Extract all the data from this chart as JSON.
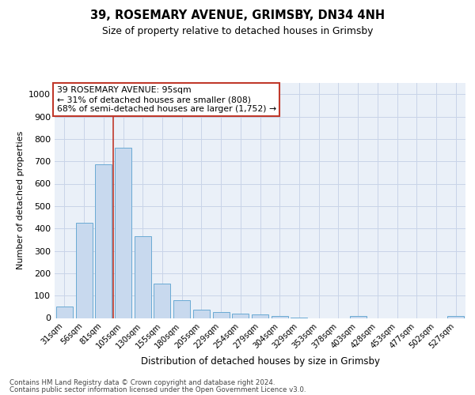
{
  "title1": "39, ROSEMARY AVENUE, GRIMSBY, DN34 4NH",
  "title2": "Size of property relative to detached houses in Grimsby",
  "xlabel": "Distribution of detached houses by size in Grimsby",
  "ylabel": "Number of detached properties",
  "categories": [
    "31sqm",
    "56sqm",
    "81sqm",
    "105sqm",
    "130sqm",
    "155sqm",
    "180sqm",
    "205sqm",
    "229sqm",
    "254sqm",
    "279sqm",
    "304sqm",
    "329sqm",
    "353sqm",
    "378sqm",
    "403sqm",
    "428sqm",
    "453sqm",
    "477sqm",
    "502sqm",
    "527sqm"
  ],
  "values": [
    50,
    425,
    685,
    760,
    365,
    153,
    78,
    38,
    27,
    20,
    15,
    8,
    2,
    0,
    0,
    10,
    0,
    0,
    0,
    0,
    10
  ],
  "bar_color": "#c8d9ee",
  "bar_edge_color": "#6aaad4",
  "grid_color": "#c8d4e8",
  "background_color": "#eaf0f8",
  "vline_color": "#c0392b",
  "vline_pos": 2.5,
  "annotation_text": "39 ROSEMARY AVENUE: 95sqm\n← 31% of detached houses are smaller (808)\n68% of semi-detached houses are larger (1,752) →",
  "annotation_box_color": "#ffffff",
  "annotation_box_edge": "#c0392b",
  "footer1": "Contains HM Land Registry data © Crown copyright and database right 2024.",
  "footer2": "Contains public sector information licensed under the Open Government Licence v3.0.",
  "ylim": [
    0,
    1050
  ],
  "yticks": [
    0,
    100,
    200,
    300,
    400,
    500,
    600,
    700,
    800,
    900,
    1000
  ]
}
